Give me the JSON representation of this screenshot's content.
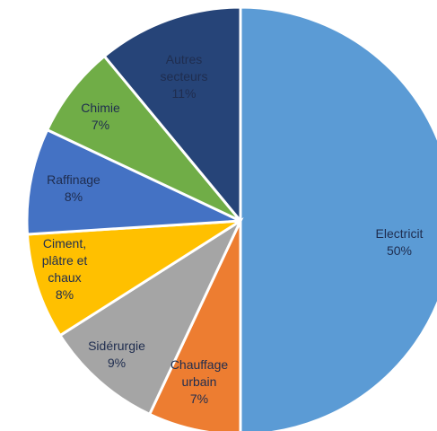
{
  "chart_data": {
    "type": "pie",
    "categories": [
      "Electricit",
      "Chauffage urbain",
      "Sidérurgie",
      "Ciment, plâtre et chaux",
      "Raffinage",
      "Chimie",
      "Autres secteurs"
    ],
    "values": [
      50,
      7,
      9,
      8,
      8,
      7,
      11
    ],
    "value_labels": [
      "50%",
      "7%",
      "9%",
      "8%",
      "8%",
      "7%",
      "11%"
    ],
    "colors": [
      "#5b9bd5",
      "#ed7d31",
      "#a5a5a5",
      "#ffc000",
      "#4472c4",
      "#70ad47",
      "#264478"
    ]
  }
}
